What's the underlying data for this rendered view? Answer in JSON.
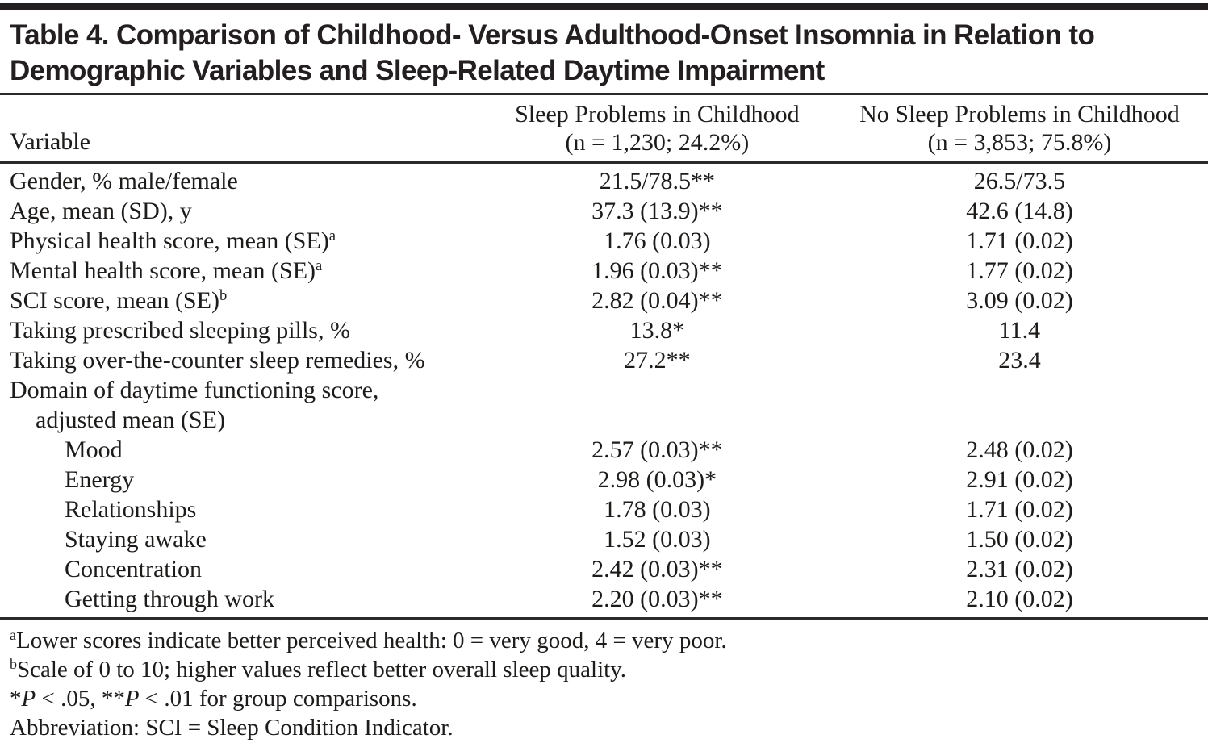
{
  "title": {
    "line1": "Table 4. Comparison of Childhood- Versus Adulthood-Onset Insomnia in Relation to",
    "line2": "Demographic Variables and Sleep-Related Daytime Impairment"
  },
  "columns": {
    "variable": "Variable",
    "group1": {
      "label": "Sleep Problems in Childhood",
      "sub": "(n = 1,230; 24.2%)"
    },
    "group2": {
      "label": "No Sleep Problems in Childhood",
      "sub": "(n = 3,853; 75.8%)"
    }
  },
  "rows": [
    {
      "label": "Gender, % male/female",
      "sup": "",
      "indent": 0,
      "v1": "21.5/78.5**",
      "v2": "26.5/73.5"
    },
    {
      "label": "Age, mean (SD), y",
      "sup": "",
      "indent": 0,
      "v1": "37.3 (13.9)**",
      "v2": "42.6 (14.8)"
    },
    {
      "label": "Physical health score, mean (SE)",
      "sup": "a",
      "indent": 0,
      "v1": "1.76 (0.03)",
      "v2": "1.71 (0.02)"
    },
    {
      "label": "Mental health score, mean (SE)",
      "sup": "a",
      "indent": 0,
      "v1": "1.96 (0.03)**",
      "v2": "1.77 (0.02)"
    },
    {
      "label": "SCI score, mean (SE)",
      "sup": "b",
      "indent": 0,
      "v1": "2.82 (0.04)**",
      "v2": "3.09 (0.02)"
    },
    {
      "label": "Taking prescribed sleeping pills, %",
      "sup": "",
      "indent": 0,
      "v1": "13.8*",
      "v2": "11.4"
    },
    {
      "label": "Taking over-the-counter sleep remedies, %",
      "sup": "",
      "indent": 0,
      "v1": "27.2**",
      "v2": "23.4"
    },
    {
      "label": "Domain of daytime functioning score,",
      "sup": "",
      "indent": 0,
      "v1": "",
      "v2": ""
    },
    {
      "label": "adjusted mean (SE)",
      "sup": "",
      "indent": 1,
      "v1": "",
      "v2": ""
    },
    {
      "label": "Mood",
      "sup": "",
      "indent": 2,
      "v1": "2.57 (0.03)**",
      "v2": "2.48 (0.02)"
    },
    {
      "label": "Energy",
      "sup": "",
      "indent": 2,
      "v1": "2.98 (0.03)*",
      "v2": "2.91 (0.02)"
    },
    {
      "label": "Relationships",
      "sup": "",
      "indent": 2,
      "v1": "1.78 (0.03)",
      "v2": "1.71 (0.02)"
    },
    {
      "label": "Staying awake",
      "sup": "",
      "indent": 2,
      "v1": "1.52 (0.03)",
      "v2": "1.50 (0.02)"
    },
    {
      "label": "Concentration",
      "sup": "",
      "indent": 2,
      "v1": "2.42 (0.03)**",
      "v2": "2.31 (0.02)"
    },
    {
      "label": "Getting through work",
      "sup": "",
      "indent": 2,
      "v1": "2.20 (0.03)**",
      "v2": "2.10 (0.02)"
    }
  ],
  "footnotes": [
    {
      "parts": [
        {
          "t": "a",
          "s": "sup"
        },
        {
          "t": "Lower scores indicate better perceived health: 0 = very good, 4 = very poor."
        }
      ]
    },
    {
      "parts": [
        {
          "t": "b",
          "s": "sup"
        },
        {
          "t": "Scale of 0 to 10; higher values reflect better overall sleep quality."
        }
      ]
    },
    {
      "parts": [
        {
          "t": "*"
        },
        {
          "t": "P",
          "s": "i"
        },
        {
          "t": " < .05, **"
        },
        {
          "t": "P",
          "s": "i"
        },
        {
          "t": " < .01 for group comparisons."
        }
      ]
    },
    {
      "parts": [
        {
          "t": "Abbreviation: SCI = Sleep Condition Indicator."
        }
      ]
    }
  ],
  "colors": {
    "text": "#1e1c1a",
    "rule": "#2c2a28",
    "top_bar": "#231f20",
    "background": "#ffffff"
  }
}
